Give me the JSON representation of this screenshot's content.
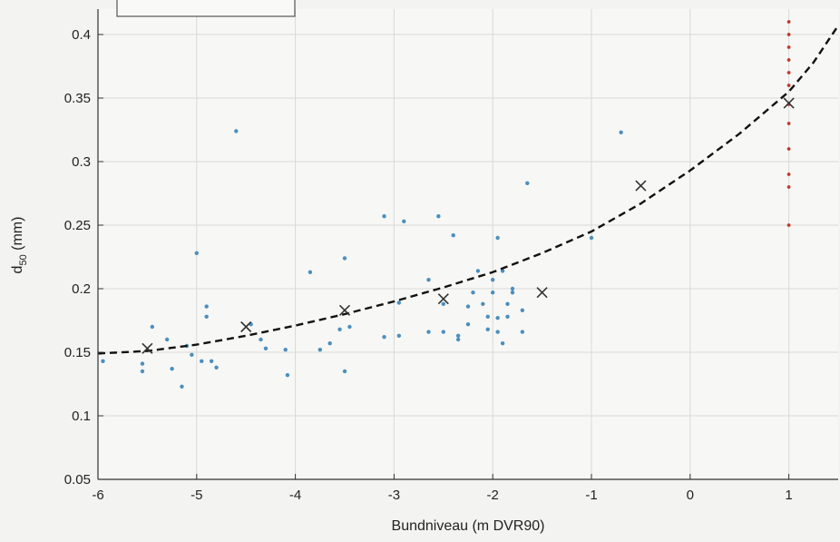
{
  "chart_data": {
    "type": "scatter",
    "xlabel": "Bundniveau (m DVR90)",
    "ylabel_main": "d",
    "ylabel_sub": "50",
    "ylabel_unit": " (mm)",
    "xlim": [
      -6,
      1.5
    ],
    "ylim": [
      0.05,
      0.42
    ],
    "x_ticks": [
      -6,
      -5,
      -4,
      -3,
      -2,
      -1,
      0,
      1
    ],
    "y_ticks": [
      0.05,
      0.1,
      0.15,
      0.2,
      0.25,
      0.3,
      0.35,
      0.4
    ],
    "grid": true,
    "legend_position": "top-left (cropped)",
    "colors": {
      "samples": "#4a8fbf",
      "mean_markers": "#333333",
      "fit": "#111111",
      "level_marks": "#c0392b",
      "grid": "#d9d9d9"
    },
    "series": [
      {
        "marker": "dot",
        "points": [
          [
            -5.95,
            0.143
          ],
          [
            -5.55,
            0.141
          ],
          [
            -5.55,
            0.135
          ],
          [
            -5.45,
            0.17
          ],
          [
            -5.3,
            0.16
          ],
          [
            -5.25,
            0.137
          ],
          [
            -5.15,
            0.123
          ],
          [
            -5.1,
            0.155
          ],
          [
            -5.05,
            0.148
          ],
          [
            -5.0,
            0.228
          ],
          [
            -4.95,
            0.143
          ],
          [
            -4.9,
            0.186
          ],
          [
            -4.9,
            0.178
          ],
          [
            -4.85,
            0.143
          ],
          [
            -4.8,
            0.138
          ],
          [
            -4.6,
            0.324
          ],
          [
            -4.45,
            0.172
          ],
          [
            -4.35,
            0.16
          ],
          [
            -4.3,
            0.153
          ],
          [
            -4.1,
            0.152
          ],
          [
            -4.08,
            0.132
          ],
          [
            -3.85,
            0.213
          ],
          [
            -3.75,
            0.152
          ],
          [
            -3.65,
            0.157
          ],
          [
            -3.55,
            0.168
          ],
          [
            -3.5,
            0.224
          ],
          [
            -3.5,
            0.135
          ],
          [
            -3.45,
            0.17
          ],
          [
            -3.1,
            0.257
          ],
          [
            -3.1,
            0.162
          ],
          [
            -2.95,
            0.163
          ],
          [
            -2.95,
            0.189
          ],
          [
            -2.9,
            0.253
          ],
          [
            -2.65,
            0.207
          ],
          [
            -2.65,
            0.166
          ],
          [
            -2.55,
            0.257
          ],
          [
            -2.5,
            0.166
          ],
          [
            -2.5,
            0.188
          ],
          [
            -2.4,
            0.242
          ],
          [
            -2.35,
            0.163
          ],
          [
            -2.35,
            0.16
          ],
          [
            -2.25,
            0.186
          ],
          [
            -2.25,
            0.172
          ],
          [
            -2.2,
            0.197
          ],
          [
            -2.15,
            0.214
          ],
          [
            -2.1,
            0.188
          ],
          [
            -2.05,
            0.178
          ],
          [
            -2.05,
            0.168
          ],
          [
            -2.0,
            0.197
          ],
          [
            -2.0,
            0.207
          ],
          [
            -1.95,
            0.24
          ],
          [
            -1.95,
            0.177
          ],
          [
            -1.95,
            0.166
          ],
          [
            -1.9,
            0.214
          ],
          [
            -1.9,
            0.157
          ],
          [
            -1.85,
            0.188
          ],
          [
            -1.85,
            0.178
          ],
          [
            -1.8,
            0.197
          ],
          [
            -1.8,
            0.2
          ],
          [
            -1.7,
            0.166
          ],
          [
            -1.7,
            0.183
          ],
          [
            -1.65,
            0.283
          ],
          [
            -0.7,
            0.323
          ],
          [
            -1.0,
            0.24
          ]
        ]
      },
      {
        "marker": "x",
        "points": [
          [
            -5.5,
            0.153
          ],
          [
            -4.5,
            0.17
          ],
          [
            -3.5,
            0.183
          ],
          [
            -2.5,
            0.192
          ],
          [
            -1.5,
            0.197
          ],
          [
            -0.5,
            0.281
          ],
          [
            1.0,
            0.346
          ]
        ]
      },
      {
        "marker": "dashed-curve",
        "points": [
          [
            -6.0,
            0.149
          ],
          [
            -5.5,
            0.151
          ],
          [
            -5.0,
            0.156
          ],
          [
            -4.5,
            0.163
          ],
          [
            -4.0,
            0.171
          ],
          [
            -3.5,
            0.18
          ],
          [
            -3.0,
            0.19
          ],
          [
            -2.5,
            0.201
          ],
          [
            -2.0,
            0.213
          ],
          [
            -1.5,
            0.228
          ],
          [
            -1.0,
            0.245
          ],
          [
            -0.5,
            0.267
          ],
          [
            0.0,
            0.293
          ],
          [
            0.5,
            0.322
          ],
          [
            1.0,
            0.355
          ],
          [
            1.25,
            0.378
          ],
          [
            1.5,
            0.407
          ]
        ]
      },
      {
        "marker": "vertical-dot-line",
        "x": 1.0,
        "y_values": [
          0.25,
          0.28,
          0.29,
          0.31,
          0.33,
          0.345,
          0.36,
          0.37,
          0.38,
          0.39,
          0.4,
          0.41
        ]
      }
    ]
  }
}
